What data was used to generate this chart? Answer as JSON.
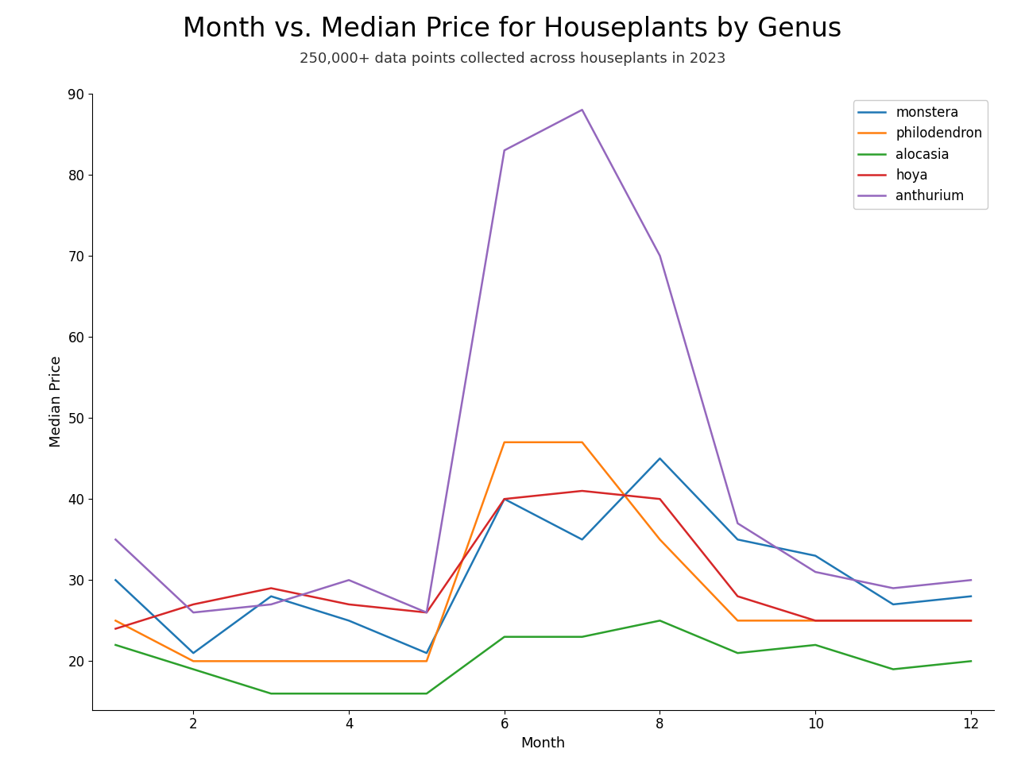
{
  "title": "Month vs. Median Price for Houseplants by Genus",
  "subtitle": "250,000+ data points collected across houseplants in 2023",
  "xlabel": "Month",
  "ylabel": "Median Price",
  "xlim": [
    1,
    12
  ],
  "ylim": [
    14,
    90
  ],
  "yticks": [
    20,
    30,
    40,
    50,
    60,
    70,
    80,
    90
  ],
  "xticks": [
    2,
    4,
    6,
    8,
    10,
    12
  ],
  "series": {
    "monstera": {
      "color": "#1f77b4",
      "x": [
        1,
        2,
        3,
        4,
        5,
        6,
        7,
        8,
        9,
        10,
        11,
        12
      ],
      "y": [
        30,
        21,
        28,
        25,
        21,
        40,
        35,
        45,
        35,
        33,
        27,
        28
      ]
    },
    "philodendron": {
      "color": "#ff7f0e",
      "x": [
        1,
        2,
        3,
        4,
        5,
        6,
        7,
        8,
        9,
        10,
        11,
        12
      ],
      "y": [
        25,
        20,
        20,
        20,
        20,
        47,
        47,
        35,
        25,
        25,
        25,
        25
      ]
    },
    "alocasia": {
      "color": "#2ca02c",
      "x": [
        1,
        2,
        3,
        4,
        5,
        6,
        7,
        8,
        9,
        10,
        11,
        12
      ],
      "y": [
        22,
        19,
        16,
        16,
        16,
        23,
        23,
        25,
        21,
        22,
        19,
        20
      ]
    },
    "hoya": {
      "color": "#d62728",
      "x": [
        1,
        2,
        3,
        4,
        5,
        6,
        7,
        8,
        9,
        10,
        11,
        12
      ],
      "y": [
        24,
        27,
        29,
        27,
        26,
        40,
        41,
        40,
        28,
        25,
        25,
        25
      ]
    },
    "anthurium": {
      "color": "#9467bd",
      "x": [
        1,
        2,
        3,
        4,
        5,
        6,
        7,
        8,
        9,
        10,
        11,
        12
      ],
      "y": [
        35,
        26,
        27,
        30,
        26,
        83,
        88,
        70,
        37,
        31,
        29,
        30
      ]
    }
  },
  "legend_order": [
    "monstera",
    "philodendron",
    "alocasia",
    "hoya",
    "anthurium"
  ],
  "background_color": "#ffffff",
  "title_fontsize": 24,
  "subtitle_fontsize": 13,
  "axis_label_fontsize": 13,
  "tick_fontsize": 12,
  "legend_fontsize": 12,
  "line_width": 1.8
}
